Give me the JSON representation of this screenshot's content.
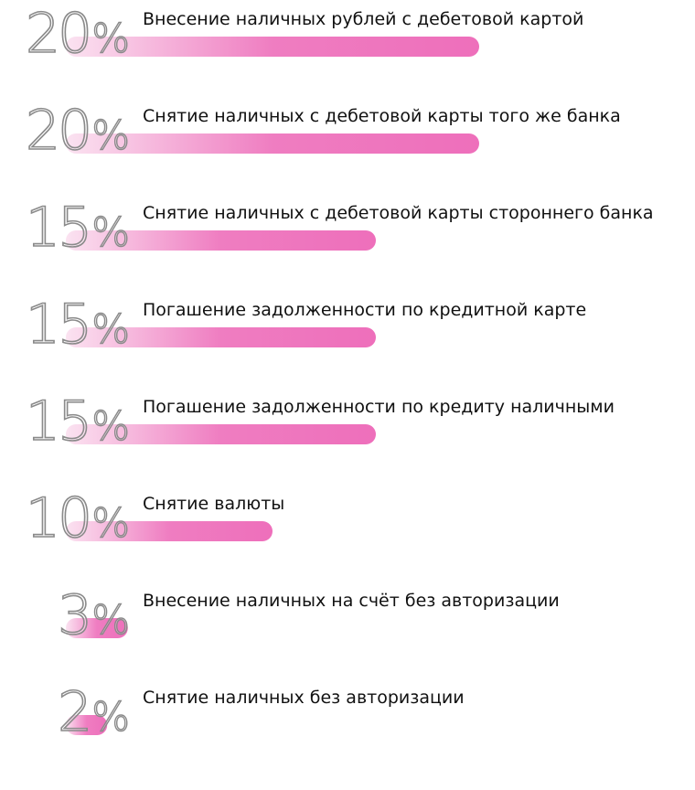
{
  "chart_data": {
    "type": "bar",
    "orientation": "horizontal",
    "categories": [
      "Внесение наличных рублей с дебетовой картой",
      "Снятие наличных с дебетовой карты того же банка",
      "Снятие наличных с дебетовой карты стороннего банка",
      "Погашение задолженности по кредитной карте",
      "Погашение задолженности по кредиту наличными",
      "Снятие валюты",
      "Внесение наличных на счёт без авторизации",
      "Снятие наличных без авторизации"
    ],
    "values": [
      20,
      20,
      15,
      15,
      15,
      10,
      3,
      2
    ],
    "value_labels": [
      "20",
      "20",
      "15",
      "15",
      "15",
      "10",
      "3",
      "2"
    ],
    "unit": "%",
    "colors": {
      "bar_start": "#fbe3f1",
      "bar_end": "#ee6fbb",
      "outline": "#8a8a8a",
      "text": "#111111"
    }
  }
}
